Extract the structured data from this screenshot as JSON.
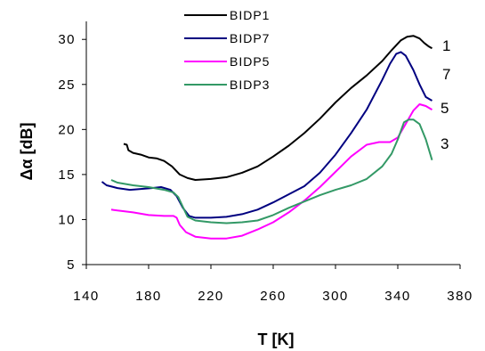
{
  "chart_data": {
    "type": "line",
    "xlabel": "T [K]",
    "ylabel": "Δα [dB]",
    "xlim": [
      140,
      380
    ],
    "ylim": [
      5,
      32
    ],
    "xticks": [
      140,
      180,
      220,
      260,
      300,
      340,
      380
    ],
    "yticks": [
      5,
      10,
      15,
      20,
      25,
      30
    ],
    "grid": false,
    "legend_position": "top-left",
    "series": [
      {
        "name": "BIDP1",
        "end_label": "1",
        "color": "#000000",
        "points": [
          [
            164,
            18.4
          ],
          [
            166,
            18.3
          ],
          [
            167,
            17.7
          ],
          [
            170,
            17.4
          ],
          [
            175,
            17.2
          ],
          [
            180,
            16.9
          ],
          [
            185,
            16.8
          ],
          [
            190,
            16.5
          ],
          [
            195,
            15.9
          ],
          [
            200,
            15.0
          ],
          [
            205,
            14.6
          ],
          [
            210,
            14.4
          ],
          [
            220,
            14.5
          ],
          [
            230,
            14.7
          ],
          [
            240,
            15.2
          ],
          [
            250,
            15.9
          ],
          [
            260,
            17.0
          ],
          [
            270,
            18.2
          ],
          [
            280,
            19.6
          ],
          [
            290,
            21.2
          ],
          [
            300,
            23.0
          ],
          [
            310,
            24.6
          ],
          [
            320,
            26.0
          ],
          [
            330,
            27.6
          ],
          [
            336,
            28.8
          ],
          [
            342,
            29.9
          ],
          [
            346,
            30.3
          ],
          [
            350,
            30.4
          ],
          [
            354,
            30.1
          ],
          [
            357,
            29.6
          ],
          [
            360,
            29.2
          ],
          [
            362,
            29.0
          ]
        ]
      },
      {
        "name": "BIDP7",
        "end_label": "7",
        "color": "#000080",
        "points": [
          [
            150,
            14.2
          ],
          [
            153,
            13.8
          ],
          [
            160,
            13.5
          ],
          [
            168,
            13.3
          ],
          [
            175,
            13.4
          ],
          [
            182,
            13.5
          ],
          [
            188,
            13.6
          ],
          [
            194,
            13.3
          ],
          [
            198,
            12.6
          ],
          [
            202,
            11.3
          ],
          [
            206,
            10.4
          ],
          [
            210,
            10.2
          ],
          [
            220,
            10.2
          ],
          [
            230,
            10.3
          ],
          [
            240,
            10.6
          ],
          [
            250,
            11.1
          ],
          [
            260,
            11.9
          ],
          [
            270,
            12.8
          ],
          [
            280,
            13.7
          ],
          [
            290,
            15.2
          ],
          [
            300,
            17.2
          ],
          [
            310,
            19.6
          ],
          [
            320,
            22.2
          ],
          [
            330,
            25.5
          ],
          [
            335,
            27.3
          ],
          [
            339,
            28.4
          ],
          [
            342,
            28.6
          ],
          [
            345,
            28.2
          ],
          [
            350,
            26.6
          ],
          [
            354,
            25.0
          ],
          [
            358,
            23.6
          ],
          [
            362,
            23.2
          ]
        ]
      },
      {
        "name": "BIDP5",
        "end_label": "5",
        "color": "#ff00ff",
        "points": [
          [
            156,
            11.1
          ],
          [
            160,
            11.0
          ],
          [
            170,
            10.8
          ],
          [
            180,
            10.5
          ],
          [
            190,
            10.4
          ],
          [
            196,
            10.4
          ],
          [
            198,
            10.2
          ],
          [
            200,
            9.4
          ],
          [
            204,
            8.6
          ],
          [
            210,
            8.1
          ],
          [
            220,
            7.9
          ],
          [
            230,
            7.9
          ],
          [
            240,
            8.2
          ],
          [
            250,
            8.9
          ],
          [
            260,
            9.7
          ],
          [
            270,
            10.8
          ],
          [
            280,
            12.1
          ],
          [
            290,
            13.6
          ],
          [
            300,
            15.3
          ],
          [
            310,
            17.0
          ],
          [
            320,
            18.3
          ],
          [
            328,
            18.6
          ],
          [
            335,
            18.6
          ],
          [
            340,
            19.1
          ],
          [
            345,
            20.6
          ],
          [
            350,
            22.1
          ],
          [
            354,
            22.8
          ],
          [
            358,
            22.6
          ],
          [
            362,
            22.2
          ]
        ]
      },
      {
        "name": "BIDP3",
        "end_label": "3",
        "color": "#339966",
        "points": [
          [
            156,
            14.4
          ],
          [
            160,
            14.1
          ],
          [
            170,
            13.8
          ],
          [
            180,
            13.6
          ],
          [
            190,
            13.3
          ],
          [
            196,
            13.0
          ],
          [
            199,
            12.5
          ],
          [
            202,
            11.4
          ],
          [
            205,
            10.3
          ],
          [
            210,
            9.9
          ],
          [
            220,
            9.7
          ],
          [
            230,
            9.6
          ],
          [
            240,
            9.7
          ],
          [
            250,
            9.9
          ],
          [
            260,
            10.5
          ],
          [
            270,
            11.3
          ],
          [
            280,
            12.0
          ],
          [
            290,
            12.7
          ],
          [
            300,
            13.3
          ],
          [
            310,
            13.8
          ],
          [
            320,
            14.5
          ],
          [
            330,
            15.9
          ],
          [
            336,
            17.3
          ],
          [
            340,
            18.9
          ],
          [
            344,
            20.8
          ],
          [
            347,
            21.1
          ],
          [
            350,
            21.1
          ],
          [
            354,
            20.6
          ],
          [
            358,
            18.9
          ],
          [
            362,
            16.6
          ]
        ]
      }
    ]
  }
}
